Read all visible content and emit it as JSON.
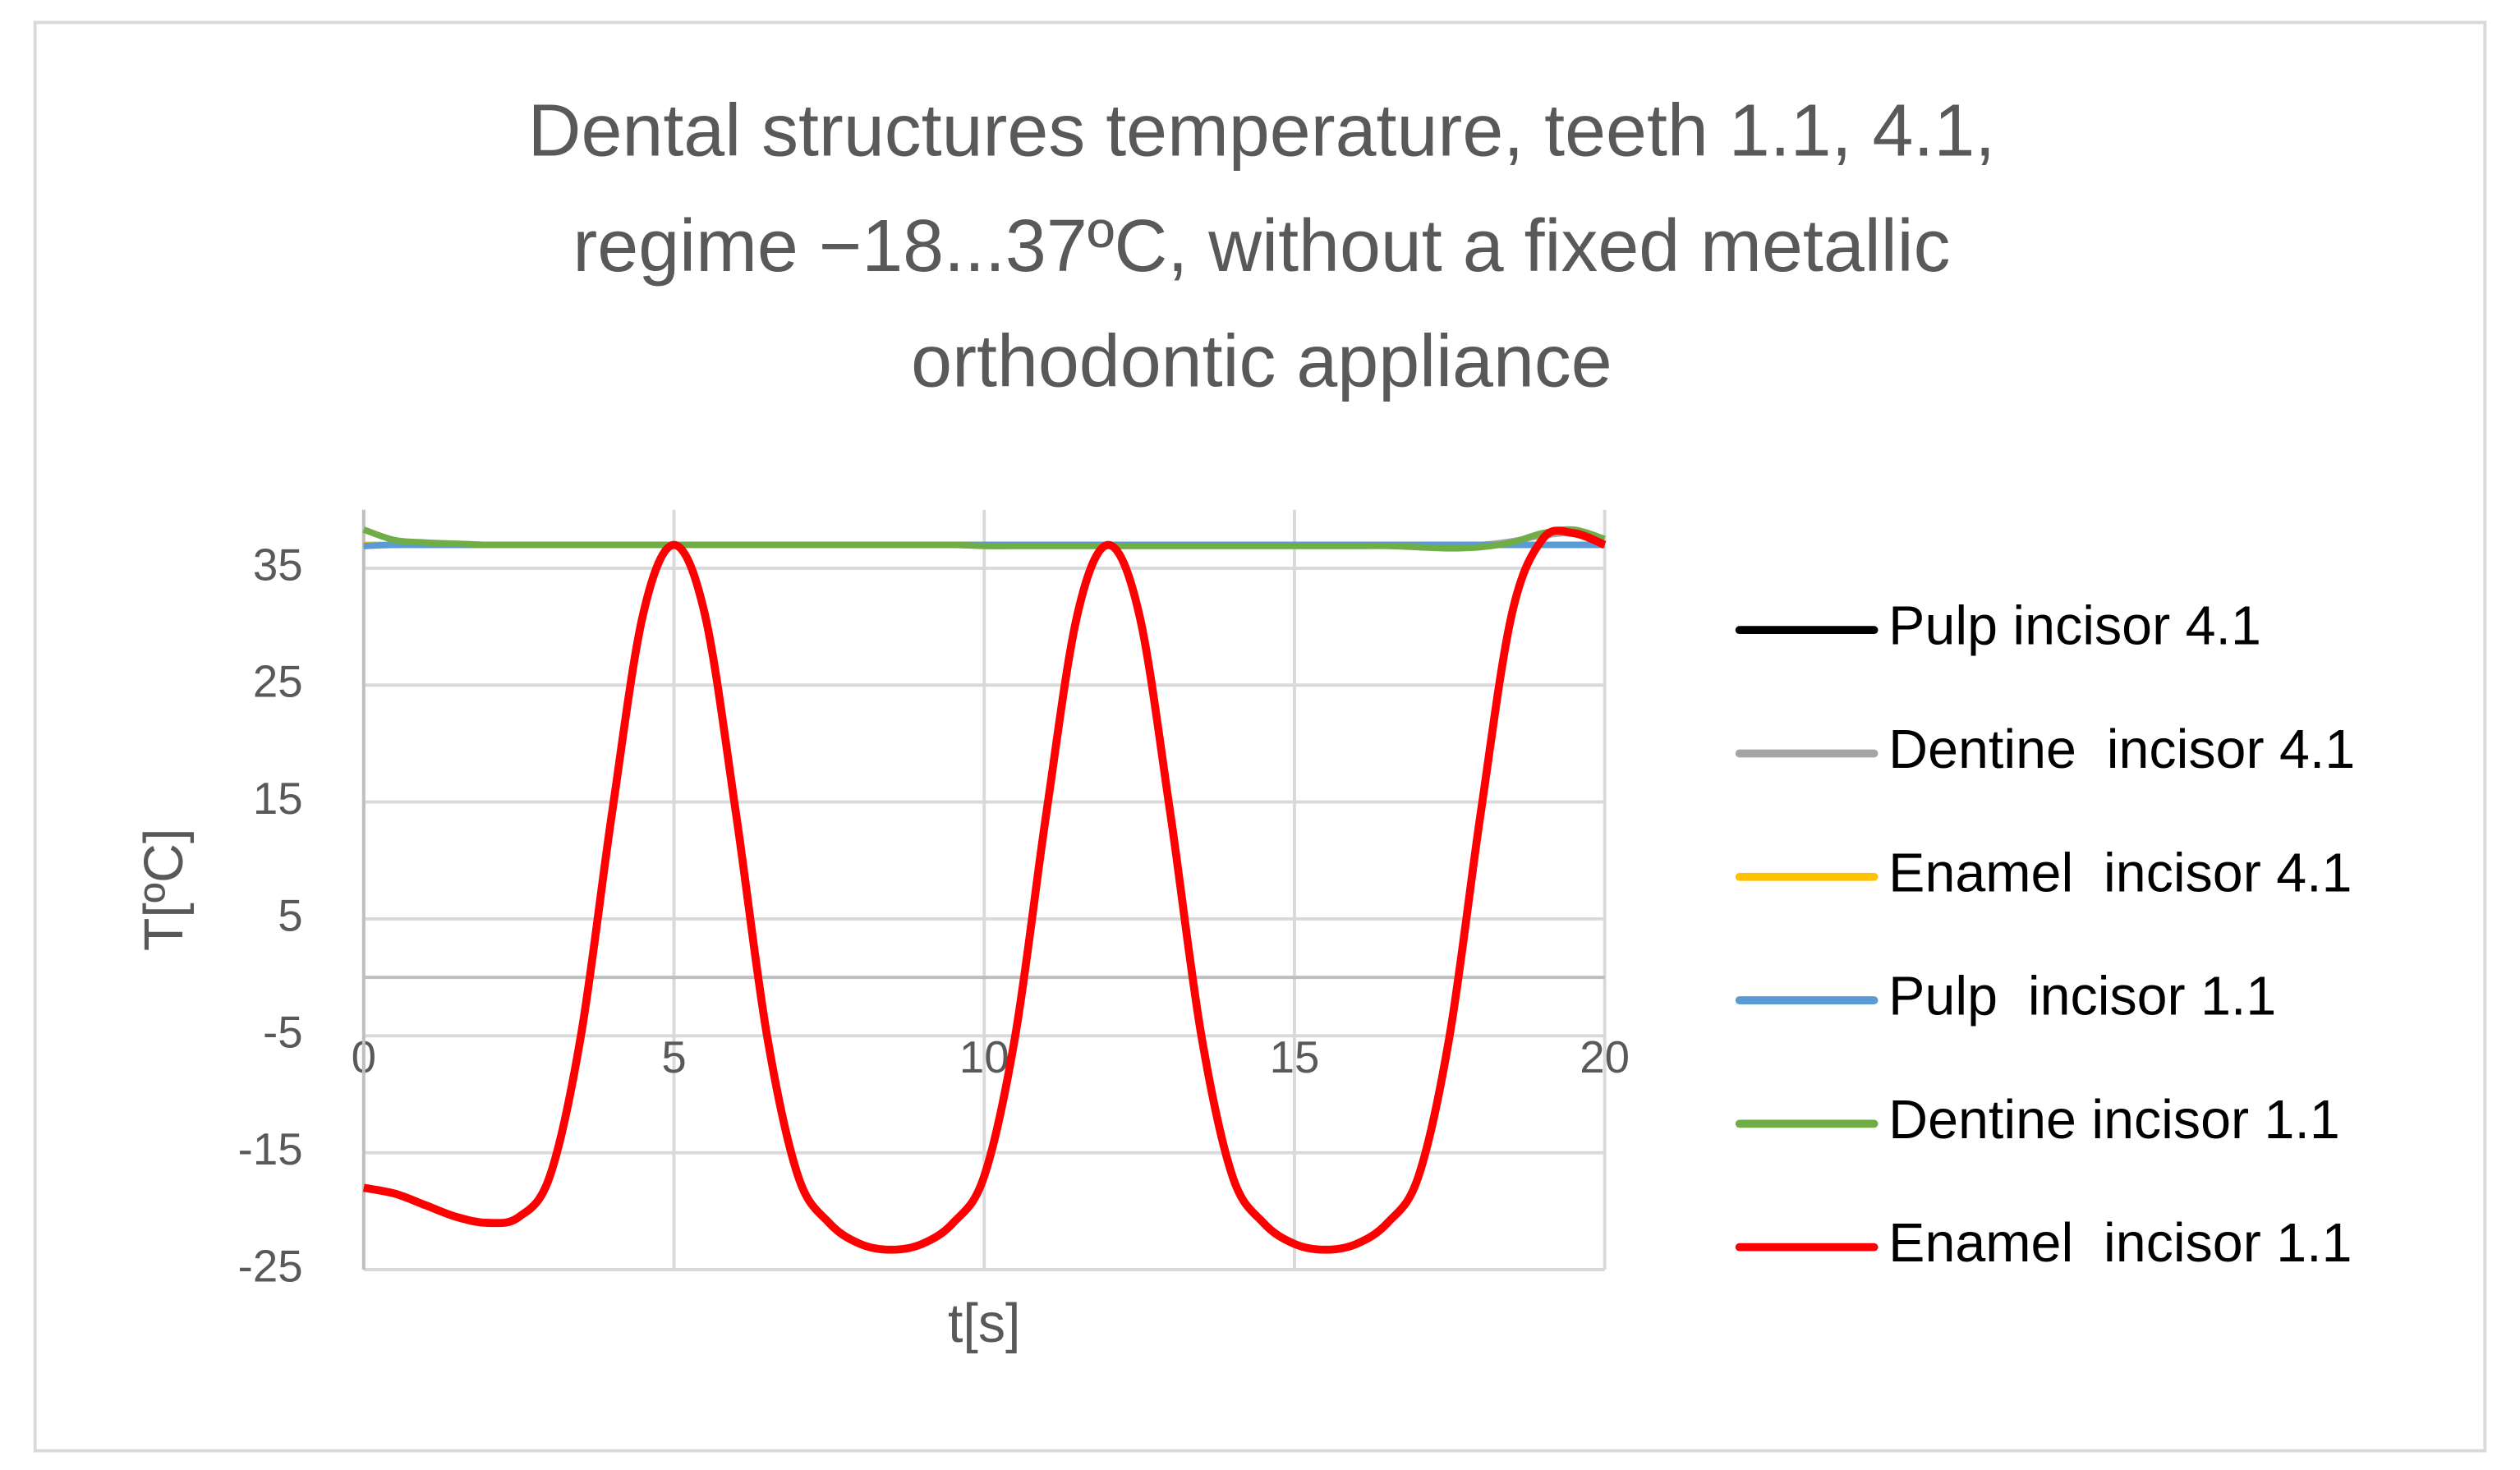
{
  "chart_data": {
    "type": "line",
    "title": [
      "Dental structures temperature, teeth 1.1, 4.1,",
      "regime −18...37ºC, without a fixed metallic",
      "orthodontic appliance"
    ],
    "x_label": "t[s]",
    "y_label": "T[ºC]",
    "x": [
      0,
      0.5,
      1,
      1.5,
      2,
      2.5,
      3,
      3.5,
      4,
      4.5,
      5,
      5.5,
      6,
      6.5,
      7,
      7.5,
      8,
      8.5,
      9,
      9.5,
      10,
      10.5,
      11,
      11.5,
      12,
      12.5,
      13,
      13.5,
      14,
      14.5,
      15,
      15.5,
      16,
      16.5,
      17,
      17.5,
      18,
      18.5,
      19,
      19.5,
      20
    ],
    "xlim": [
      0,
      20
    ],
    "xticks": [
      0,
      5,
      10,
      15,
      20
    ],
    "ylim": [
      -25,
      40
    ],
    "yticks": [
      -25,
      -15,
      -5,
      5,
      15,
      25,
      35
    ],
    "grid": true,
    "legend": "right",
    "series": [
      {
        "name": "Pulp incisor 4.1",
        "color": "#000000",
        "values": [
          37,
          37,
          37,
          37,
          37,
          37,
          37,
          37,
          37,
          37,
          37,
          37,
          37,
          37,
          37,
          37,
          37,
          37,
          37,
          37,
          37,
          37,
          37,
          37,
          37,
          37,
          37,
          37,
          37,
          37,
          37,
          37,
          37,
          37,
          37,
          37,
          37,
          37,
          37,
          37,
          37
        ]
      },
      {
        "name": "Dentine  incisor 4.1",
        "color": "#a5a5a5",
        "values": [
          37,
          37,
          37,
          37,
          37,
          37,
          37,
          37,
          37,
          37,
          37,
          37,
          37,
          37,
          37,
          37,
          37,
          37,
          37,
          37,
          37,
          37,
          37,
          37,
          37,
          37,
          37,
          37,
          37,
          37,
          37,
          37,
          37,
          37,
          37,
          37,
          37,
          37.3,
          37.8,
          38,
          37.5
        ]
      },
      {
        "name": "Enamel  incisor 4.1",
        "color": "#ffc000",
        "values": [
          37,
          37,
          37,
          37,
          37,
          37,
          37,
          37,
          37,
          37,
          37,
          37,
          37,
          37,
          37,
          37,
          37,
          37,
          37,
          37,
          37,
          37,
          37,
          37,
          37,
          37,
          37,
          37,
          37,
          37,
          37,
          37,
          37,
          37,
          37,
          37,
          37,
          37,
          37,
          37,
          37
        ]
      },
      {
        "name": "Pulp  incisor 1.1",
        "color": "#5b9bd5",
        "values": [
          36.9,
          37,
          37,
          37,
          37,
          37,
          37,
          37,
          37,
          37,
          37,
          37,
          37,
          37,
          37,
          37,
          37,
          37,
          37,
          37,
          37,
          37,
          37,
          37,
          37,
          37,
          37,
          37,
          37,
          37,
          37,
          37,
          37,
          37,
          37,
          37,
          37,
          37,
          37,
          37,
          37
        ]
      },
      {
        "name": "Dentine incisor 1.1",
        "color": "#70ad47",
        "values": [
          38.3,
          37.4,
          37.2,
          37.1,
          37,
          37,
          37,
          37,
          37,
          37,
          37,
          37,
          37,
          37,
          37,
          37,
          37,
          37,
          37,
          37,
          36.9,
          36.9,
          36.9,
          36.9,
          36.9,
          36.9,
          36.9,
          36.9,
          36.9,
          36.9,
          36.9,
          36.9,
          36.9,
          36.9,
          36.8,
          36.7,
          36.8,
          37.2,
          38,
          38.3,
          37.5
        ]
      },
      {
        "name": "Enamel  incisor 1.1",
        "color": "#ff0000",
        "values": [
          -18,
          -18.5,
          -19.5,
          -20.5,
          -21,
          -20.5,
          -17,
          -5,
          14,
          31,
          37,
          31,
          14,
          -5,
          -17,
          -21,
          -22.8,
          -23.3,
          -22.8,
          -21,
          -17,
          -5,
          14,
          31,
          37,
          31,
          14,
          -5,
          -17,
          -21,
          -22.8,
          -23.3,
          -22.8,
          -21,
          -17,
          -5,
          14,
          31,
          37.5,
          38,
          37
        ]
      }
    ]
  }
}
